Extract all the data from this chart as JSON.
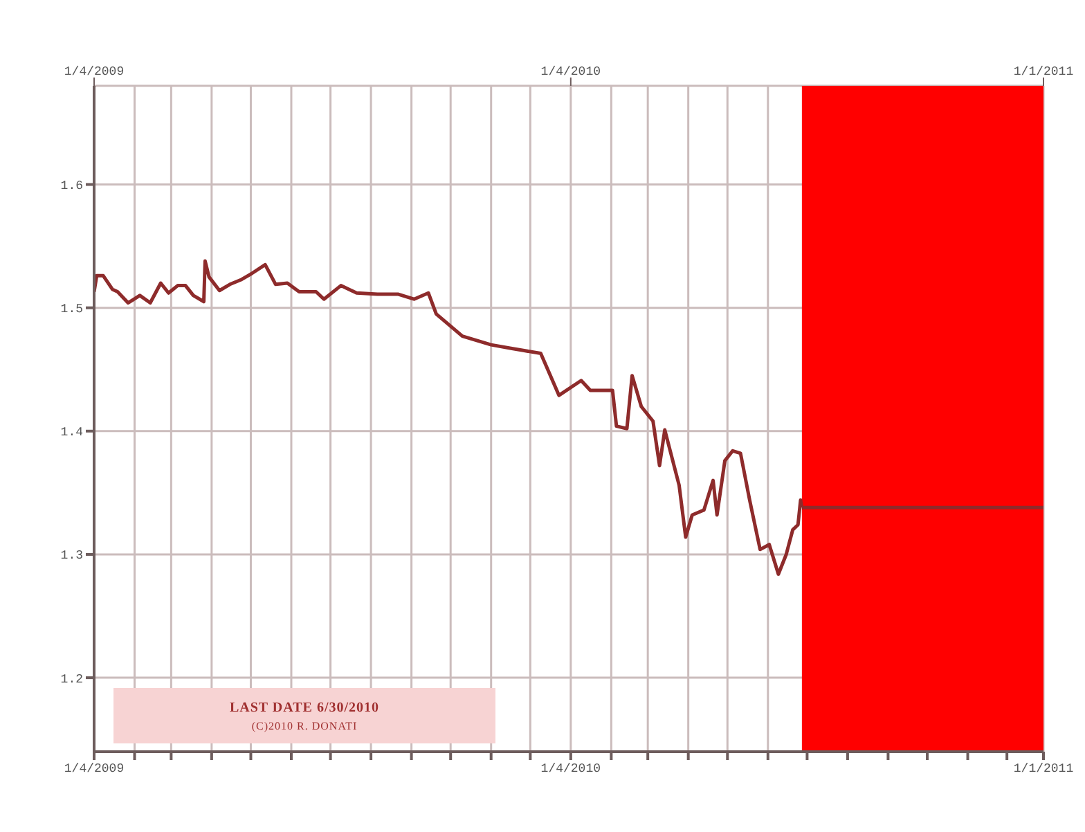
{
  "chart_data": {
    "type": "line",
    "xlim": [
      "2009-01-04",
      "2011-01-01"
    ],
    "xticks": [
      {
        "value": "2009-01-04",
        "label": "1/4/2009"
      },
      {
        "value": "2009-02-04",
        "label": null
      },
      {
        "value": "2009-03-04",
        "label": null
      },
      {
        "value": "2009-04-04",
        "label": null
      },
      {
        "value": "2009-05-04",
        "label": null
      },
      {
        "value": "2009-06-04",
        "label": null
      },
      {
        "value": "2009-07-04",
        "label": null
      },
      {
        "value": "2009-08-04",
        "label": null
      },
      {
        "value": "2009-09-04",
        "label": null
      },
      {
        "value": "2009-10-04",
        "label": null
      },
      {
        "value": "2009-11-04",
        "label": null
      },
      {
        "value": "2009-12-04",
        "label": null
      },
      {
        "value": "2010-01-04",
        "label": "1/4/2010"
      },
      {
        "value": "2010-02-04",
        "label": null
      },
      {
        "value": "2010-03-04",
        "label": null
      },
      {
        "value": "2010-04-04",
        "label": null
      },
      {
        "value": "2010-05-04",
        "label": null
      },
      {
        "value": "2010-06-04",
        "label": null
      },
      {
        "value": "2010-07-04",
        "label": null
      },
      {
        "value": "2010-08-04",
        "label": null
      },
      {
        "value": "2010-09-04",
        "label": null
      },
      {
        "value": "2010-10-04",
        "label": null
      },
      {
        "value": "2010-11-04",
        "label": null
      },
      {
        "value": "2010-12-04",
        "label": null
      },
      {
        "value": "2011-01-01",
        "label": "1/1/2011"
      }
    ],
    "x2lim": [
      "2009-01-04",
      "2011-01-01"
    ],
    "x2ticks": [
      {
        "value": "2009-01-04",
        "label": "1/4/2009"
      },
      {
        "value": "2010-01-04",
        "label": "1/4/2010"
      },
      {
        "value": "2011-01-01",
        "label": "1/1/2011"
      }
    ],
    "ylim": [
      1.14,
      1.68
    ],
    "yticks": [
      1.2,
      1.3,
      1.4,
      1.5,
      1.6
    ],
    "grid": true,
    "series": [
      {
        "color": "#8e2b2b",
        "x": [
          "2009-01-04",
          "2009-01-06",
          "2009-01-11",
          "2009-01-18",
          "2009-01-22",
          "2009-01-30",
          "2009-02-08",
          "2009-02-16",
          "2009-02-24",
          "2009-03-02",
          "2009-03-09",
          "2009-03-15",
          "2009-03-21",
          "2009-03-29",
          "2009-03-30",
          "2009-04-02",
          "2009-04-10",
          "2009-04-18",
          "2009-04-27",
          "2009-05-05",
          "2009-05-15",
          "2009-05-23",
          "2009-06-01",
          "2009-06-10",
          "2009-06-23",
          "2009-06-29",
          "2009-07-12",
          "2009-07-24",
          "2009-08-09",
          "2009-08-25",
          "2009-09-06",
          "2009-09-17",
          "2009-09-23",
          "2009-10-13",
          "2009-11-04",
          "2009-11-20",
          "2009-12-12",
          "2009-12-26",
          "2010-01-12",
          "2010-01-19",
          "2010-02-05",
          "2010-02-08",
          "2010-02-16",
          "2010-02-20",
          "2010-02-27",
          "2010-03-08",
          "2010-03-13",
          "2010-03-17",
          "2010-03-28",
          "2010-04-02",
          "2010-04-07",
          "2010-04-16",
          "2010-04-23",
          "2010-04-26",
          "2010-05-02",
          "2010-05-08",
          "2010-05-14",
          "2010-05-21",
          "2010-05-29",
          "2010-06-05",
          "2010-06-12",
          "2010-06-18",
          "2010-06-23",
          "2010-06-27",
          "2010-06-29",
          "2010-06-30"
        ],
        "values": [
          1.513,
          1.526,
          1.526,
          1.515,
          1.513,
          1.504,
          1.51,
          1.504,
          1.52,
          1.512,
          1.518,
          1.518,
          1.51,
          1.505,
          1.538,
          1.525,
          1.514,
          1.519,
          1.523,
          1.528,
          1.535,
          1.519,
          1.52,
          1.513,
          1.513,
          1.507,
          1.518,
          1.512,
          1.511,
          1.511,
          1.507,
          1.512,
          1.495,
          1.477,
          1.47,
          1.467,
          1.463,
          1.429,
          1.441,
          1.433,
          1.433,
          1.404,
          1.402,
          1.445,
          1.42,
          1.408,
          1.372,
          1.401,
          1.356,
          1.314,
          1.332,
          1.336,
          1.36,
          1.332,
          1.376,
          1.384,
          1.382,
          1.344,
          1.304,
          1.308,
          1.284,
          1.3,
          1.32,
          1.324,
          1.344,
          1.338
        ]
      },
      {
        "color": "#8e2b2b",
        "x": [
          "2010-06-30",
          "2011-01-01"
        ],
        "values": [
          1.338,
          1.338
        ]
      }
    ],
    "bands": [
      {
        "axis": "x",
        "from": "2010-06-30",
        "to": "2011-01-01",
        "color": "#ff0000"
      }
    ],
    "annotations": [
      "LAST DATE 6/30/2010",
      "(C)2010 R. DONATI"
    ]
  }
}
